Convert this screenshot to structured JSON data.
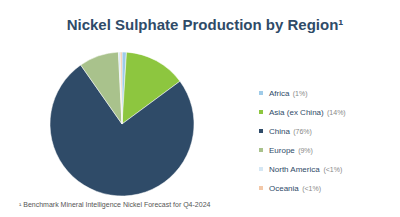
{
  "chart_data": {
    "type": "pie",
    "title": "Nickel Sulphate Production by Region¹",
    "categories": [
      "Africa",
      "Asia (ex China)",
      "China",
      "Europe",
      "North America",
      "Oceania"
    ],
    "values": [
      1,
      14,
      76,
      9,
      0.4,
      0.4
    ],
    "value_labels": [
      "(1%)",
      "(14%)",
      "(76%)",
      "(9%)",
      "(<1%)",
      "(<1%)"
    ],
    "colors": [
      "#9fcbe8",
      "#8dc63f",
      "#2f4b68",
      "#a9c28c",
      "#d5e7f4",
      "#f3c8a8"
    ],
    "legend": "right",
    "annotations": [
      "¹ Benchmark Mineral Intelligence Nickel Forecast for Q4-2024"
    ]
  }
}
